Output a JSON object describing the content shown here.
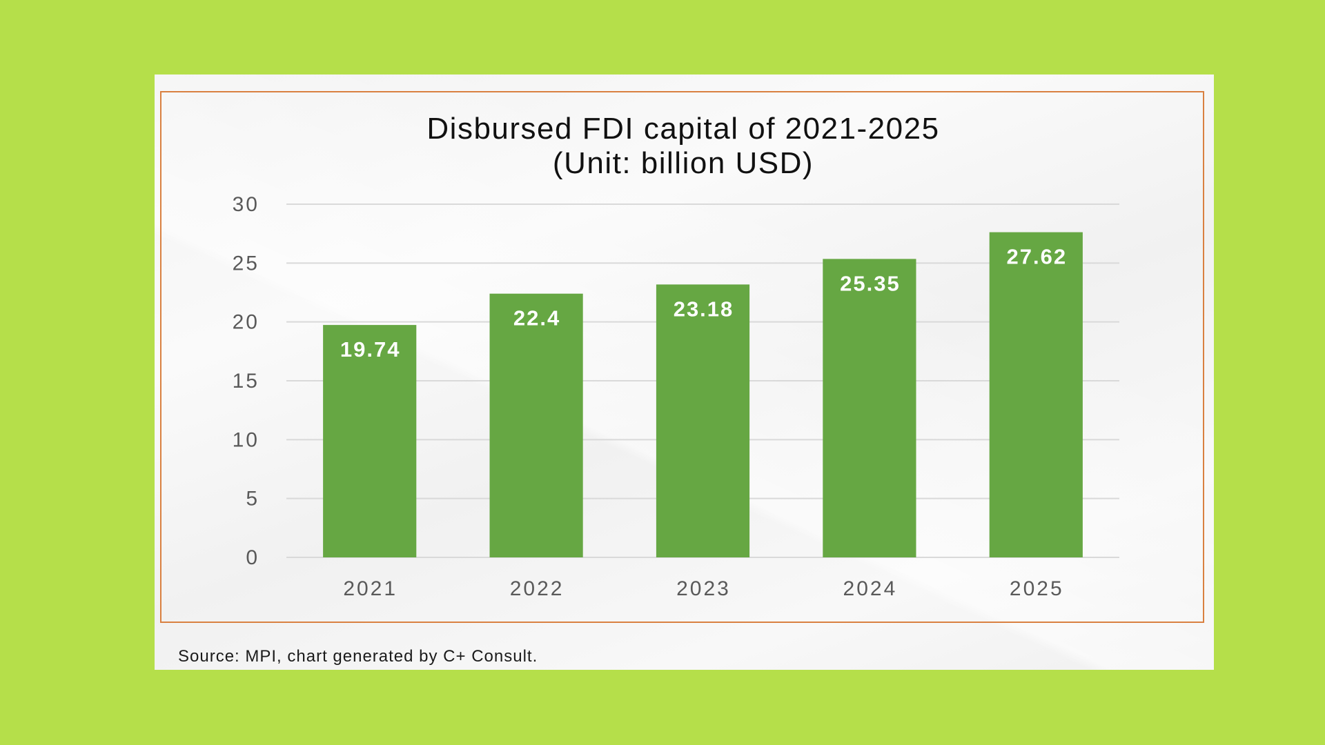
{
  "colors": {
    "background": "#B5DF4A",
    "panel": "#F5F5F5",
    "frame_border": "#D98040",
    "bar": "#66A743",
    "gridline": "#D9D9D9",
    "axis_text": "#595959",
    "value_text": "#FFFFFF"
  },
  "chart_data": {
    "type": "bar",
    "title": "Disbursed FDI capital of 2021-2025",
    "subtitle": "(Unit: billion USD)",
    "xlabel": "",
    "ylabel": "",
    "categories": [
      "2021",
      "2022",
      "2023",
      "2024",
      "2025"
    ],
    "values": [
      19.74,
      22.4,
      23.18,
      25.35,
      27.62
    ],
    "value_labels": [
      "19.74",
      "22.4",
      "23.18",
      "25.35",
      "27.62"
    ],
    "ylim": [
      0,
      30
    ],
    "yticks": [
      0,
      5,
      10,
      15,
      20,
      25,
      30
    ],
    "ytick_labels": [
      "0",
      "5",
      "10",
      "15",
      "20",
      "25",
      "30"
    ],
    "grid": true,
    "legend": "none",
    "data_label_position": "inside-end"
  },
  "footer": {
    "source": "Source: MPI, chart generated by C+ Consult."
  }
}
